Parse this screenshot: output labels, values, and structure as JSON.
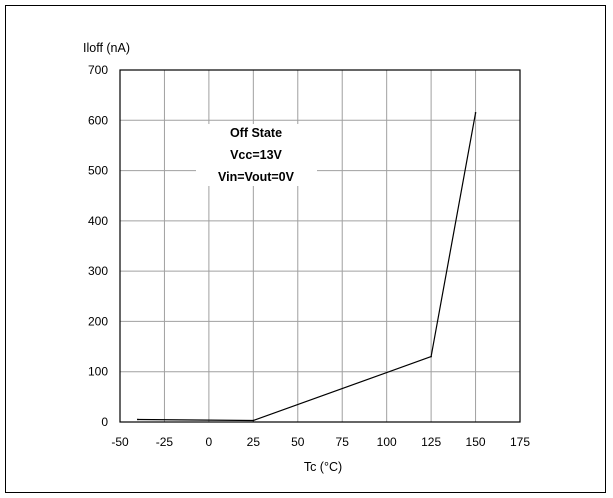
{
  "chart_data": {
    "type": "line",
    "ylabel": "Iloff (nA)",
    "xlabel": "Tc (°C)",
    "xlim": [
      -50,
      175
    ],
    "ylim": [
      0,
      700
    ],
    "xticks": [
      -50,
      -25,
      0,
      25,
      50,
      75,
      100,
      125,
      150,
      175
    ],
    "yticks": [
      0,
      100,
      200,
      300,
      400,
      500,
      600,
      700
    ],
    "grid": true,
    "annotation": [
      "Off State",
      "Vcc=13V",
      "Vin=Vout=0V"
    ],
    "series": [
      {
        "x": [
          -40,
          25,
          125,
          150
        ],
        "y": [
          5,
          3,
          130,
          615
        ]
      }
    ]
  }
}
